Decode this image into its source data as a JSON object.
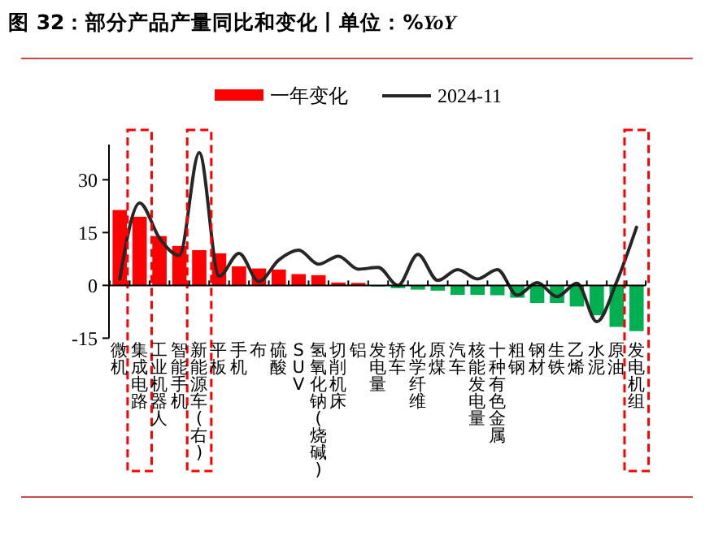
{
  "chart_data": {
    "type": "bar",
    "title": "图 32：部分产品产量同比和变化丨单位：%YoY",
    "categories": [
      "微机",
      "集成电路",
      "工业机器人",
      "智能手机",
      "新能源车(右)",
      "平板",
      "手机",
      "布",
      "硫酸",
      "SUV",
      "氢氧化钠(烧碱)",
      "切削机床",
      "铝",
      "发电量",
      "轿车",
      "化学纤维",
      "原煤",
      "汽车",
      "核能发电量",
      "十种有色金属",
      "粗钢",
      "钢材",
      "生铁",
      "乙烯",
      "水泥",
      "原油",
      "发电机组"
    ],
    "series": [
      {
        "name": "一年变化",
        "color": "#ff0000",
        "colors": [
          "#ff0000",
          "#ff0000",
          "#ff0000",
          "#ff0000",
          "#ff0000",
          "#ff0000",
          "#ff0000",
          "#ff0000",
          "#ff0000",
          "#ff0000",
          "#ff0000",
          "#ff0000",
          "#ff0000",
          "#00b050",
          "#00b050",
          "#00b050",
          "#00b050",
          "#00b050",
          "#00b050",
          "#00b050",
          "#00b050",
          "#00b050",
          "#00b050",
          "#00b050",
          "#00b050",
          "#00b050",
          "#00b050"
        ],
        "values": [
          21.4,
          19.5,
          14,
          11.2,
          10,
          9.1,
          5.4,
          4.8,
          4.5,
          3.2,
          2.9,
          0.8,
          0.7,
          -0.3,
          -0.8,
          -1.2,
          -1.5,
          -2.7,
          -2.7,
          -2.8,
          -3.5,
          -5,
          -5,
          -6,
          -8.5,
          -11.8,
          -13
        ]
      },
      {
        "name": "2024-11",
        "type": "line",
        "color": "#262626",
        "values": [
          1.8,
          23.4,
          13.4,
          8.5,
          37.7,
          2.6,
          9.1,
          1.1,
          7.2,
          10,
          6,
          8.3,
          4.6,
          5.1,
          0,
          8.8,
          1.4,
          4.5,
          1.8,
          4.5,
          -2.8,
          0.8,
          -3.2,
          0.6,
          -10.3,
          1,
          16.5
        ]
      }
    ],
    "ylim": [
      -15,
      40
    ],
    "yticks": [
      -15,
      0,
      15,
      30
    ],
    "legend": "top",
    "marker": "none",
    "line_style": "solid"
  }
}
